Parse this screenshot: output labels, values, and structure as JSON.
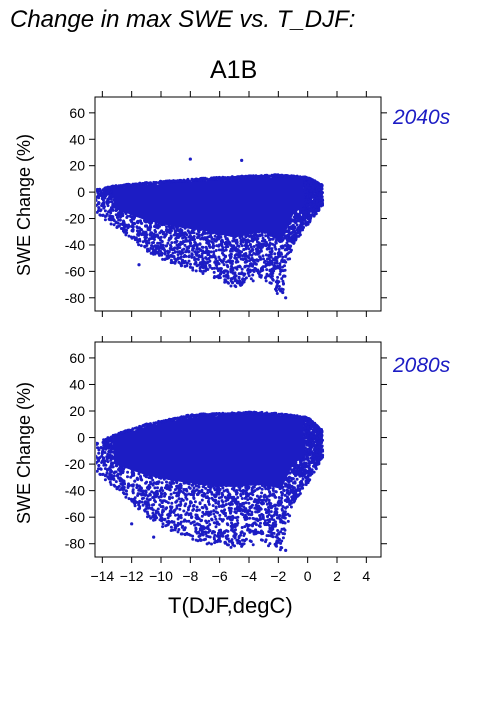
{
  "figure": {
    "title": "Change in max SWE vs. T_DJF:",
    "scenario": "A1B",
    "point_color": "#1c1cc4"
  },
  "chart_data": [
    {
      "type": "scatter",
      "panel_label": "2040s",
      "ylabel": "SWE Change (%)",
      "xlabel": "",
      "xlim": [
        -14.5,
        5
      ],
      "ylim": [
        -90,
        72
      ],
      "x_ticks": [
        -14,
        -12,
        -10,
        -8,
        -6,
        -4,
        -2,
        0,
        2,
        4
      ],
      "y_ticks": [
        -80,
        -60,
        -40,
        -20,
        0,
        20,
        40,
        60
      ],
      "x_ticklabels_shown": false,
      "cloud": {
        "x_range": [
          -14.5,
          1
        ],
        "upper_bound": [
          [
            -14.5,
            2
          ],
          [
            -13,
            5
          ],
          [
            -10,
            8
          ],
          [
            -6,
            11
          ],
          [
            -2,
            13
          ],
          [
            0,
            11
          ],
          [
            1,
            5
          ]
        ],
        "lower_bound": [
          [
            -14.5,
            -15
          ],
          [
            -13,
            -28
          ],
          [
            -11,
            -45
          ],
          [
            -9,
            -55
          ],
          [
            -7,
            -62
          ],
          [
            -5,
            -72
          ],
          [
            -3,
            -65
          ],
          [
            -1.8,
            -80
          ],
          [
            -1,
            -40
          ],
          [
            0,
            -25
          ],
          [
            1,
            -10
          ]
        ],
        "density_center": [
          -6,
          -15
        ]
      },
      "outliers": [
        [
          -8,
          25
        ],
        [
          -4.5,
          24
        ],
        [
          -1.5,
          -80
        ],
        [
          -1.7,
          -76
        ],
        [
          -11.5,
          -55
        ]
      ]
    },
    {
      "type": "scatter",
      "panel_label": "2080s",
      "ylabel": "SWE Change (%)",
      "xlabel": "T(DJF,degC)",
      "xlim": [
        -14.5,
        5
      ],
      "ylim": [
        -90,
        72
      ],
      "x_ticks": [
        -14,
        -12,
        -10,
        -8,
        -6,
        -4,
        -2,
        0,
        2,
        4
      ],
      "x_ticklabels": [
        "−14",
        "−12",
        "−10",
        "−8",
        "−6",
        "−4",
        "−2",
        "0",
        "2",
        "4"
      ],
      "y_ticks": [
        -80,
        -60,
        -40,
        -20,
        0,
        20,
        40,
        60
      ],
      "x_ticklabels_shown": true,
      "cloud": {
        "x_range": [
          -14.5,
          1
        ],
        "upper_bound": [
          [
            -14.5,
            -5
          ],
          [
            -13,
            3
          ],
          [
            -11,
            10
          ],
          [
            -8,
            17
          ],
          [
            -4,
            19
          ],
          [
            -2,
            18
          ],
          [
            0,
            15
          ],
          [
            1,
            5
          ]
        ],
        "lower_bound": [
          [
            -14.5,
            -25
          ],
          [
            -13,
            -40
          ],
          [
            -11,
            -60
          ],
          [
            -9,
            -72
          ],
          [
            -7,
            -80
          ],
          [
            -5,
            -83
          ],
          [
            -3,
            -80
          ],
          [
            -1.8,
            -85
          ],
          [
            -1,
            -50
          ],
          [
            0,
            -35
          ],
          [
            1,
            -15
          ]
        ],
        "density_center": [
          -5.5,
          -35
        ]
      },
      "outliers": [
        [
          -1.5,
          -85
        ],
        [
          -10.5,
          -75
        ],
        [
          -12,
          -65
        ]
      ]
    }
  ]
}
